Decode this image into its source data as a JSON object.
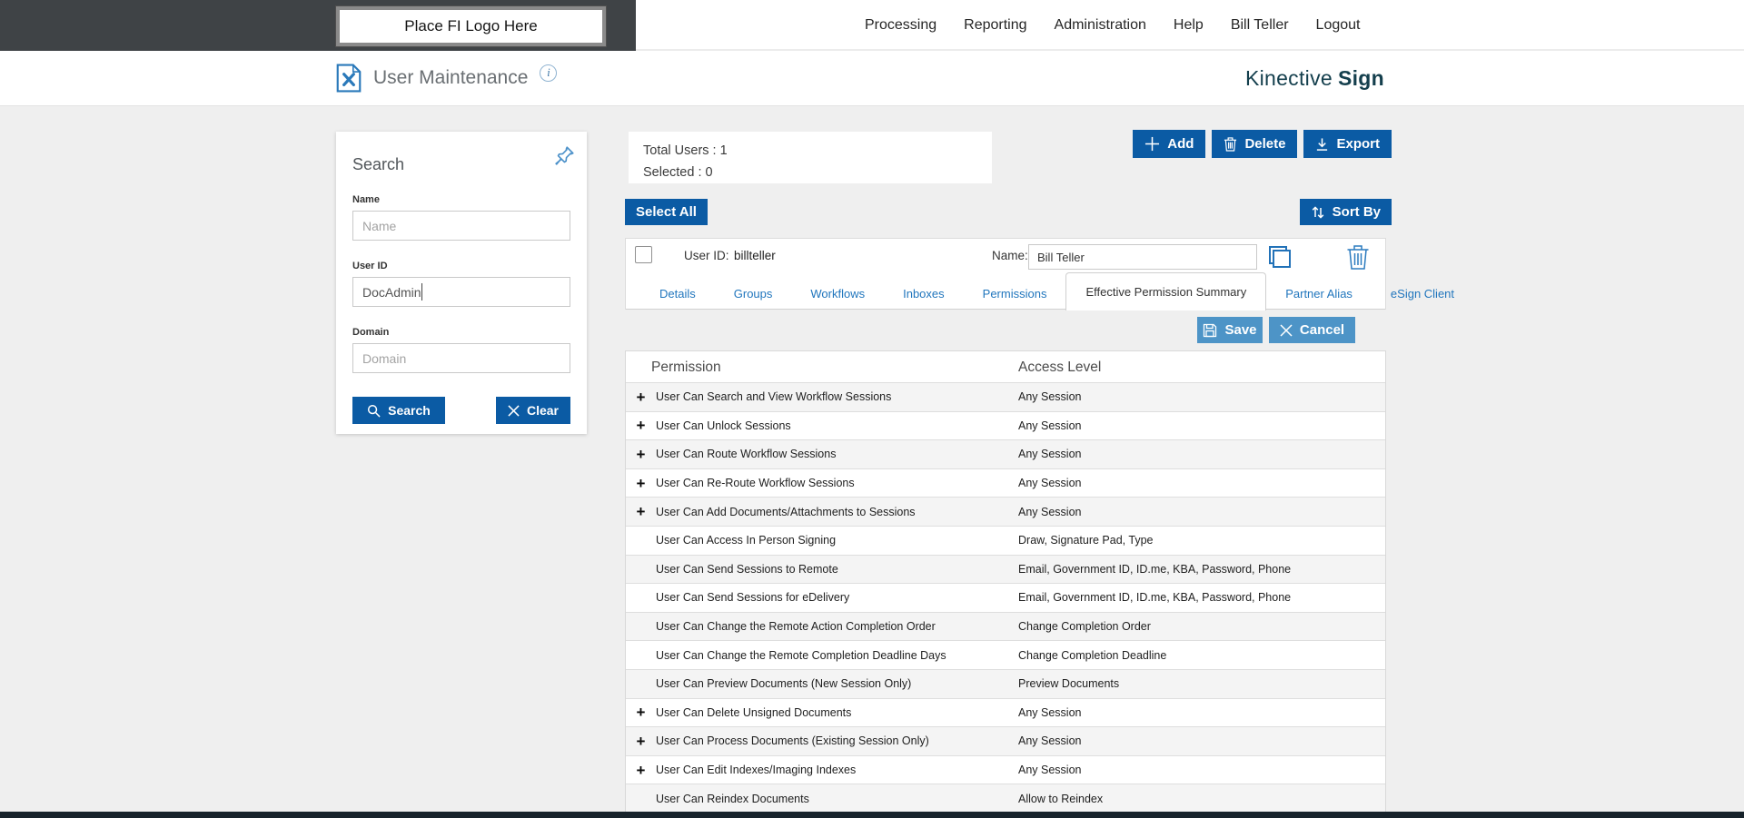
{
  "top_nav": {
    "logo_placeholder": "Place FI Logo Here",
    "links": [
      "Processing",
      "Reporting",
      "Administration",
      "Help",
      "Bill Teller",
      "Logout"
    ]
  },
  "header": {
    "title": "User Maintenance",
    "brand_name": "Kinective",
    "brand_product": "Sign"
  },
  "search_panel": {
    "title": "Search",
    "fields": [
      {
        "label": "Name",
        "placeholder": "Name",
        "value": ""
      },
      {
        "label": "User ID",
        "placeholder": "",
        "value": "DocAdmin"
      },
      {
        "label": "Domain",
        "placeholder": "Domain",
        "value": ""
      }
    ],
    "search_button": "Search",
    "clear_button": "Clear"
  },
  "summary": {
    "total_users_label": "Total Users :",
    "total_users_value": "1",
    "selected_label": "Selected :",
    "selected_value": "0"
  },
  "toolbar": {
    "add_label": "Add",
    "delete_label": "Delete",
    "export_label": "Export",
    "select_all_label": "Select All",
    "sort_by_label": "Sort By"
  },
  "user_card": {
    "user_id_label": "User ID:",
    "user_id_value": "billteller",
    "name_label": "Name:",
    "required_mark": "*",
    "name_value": "Bill Teller",
    "tabs": [
      {
        "label": "Details",
        "active": false
      },
      {
        "label": "Groups",
        "active": false
      },
      {
        "label": "Workflows",
        "active": false
      },
      {
        "label": "Inboxes",
        "active": false
      },
      {
        "label": "Permissions",
        "active": false
      },
      {
        "label": "Effective Permission Summary",
        "active": true
      },
      {
        "label": "Partner Alias",
        "active": false
      },
      {
        "label": "eSign Client",
        "active": false
      }
    ],
    "save_label": "Save",
    "cancel_label": "Cancel"
  },
  "permissions_table": {
    "columns": [
      "Permission",
      "Access Level"
    ],
    "rows": [
      {
        "expandable": true,
        "permission": "User Can Search and View Workflow Sessions",
        "access_level": "Any Session"
      },
      {
        "expandable": true,
        "permission": "User Can Unlock Sessions",
        "access_level": "Any Session"
      },
      {
        "expandable": true,
        "permission": "User Can Route Workflow Sessions",
        "access_level": "Any Session"
      },
      {
        "expandable": true,
        "permission": "User Can Re-Route Workflow Sessions",
        "access_level": "Any Session"
      },
      {
        "expandable": true,
        "permission": "User Can Add Documents/Attachments to Sessions",
        "access_level": "Any Session"
      },
      {
        "expandable": false,
        "permission": "User Can Access In Person Signing",
        "access_level": "Draw, Signature Pad, Type"
      },
      {
        "expandable": false,
        "permission": "User Can Send Sessions to Remote",
        "access_level": "Email, Government ID, ID.me, KBA, Password, Phone"
      },
      {
        "expandable": false,
        "permission": "User Can Send Sessions for eDelivery",
        "access_level": "Email, Government ID, ID.me, KBA, Password, Phone"
      },
      {
        "expandable": false,
        "permission": "User Can Change the Remote Action Completion Order",
        "access_level": "Change Completion Order"
      },
      {
        "expandable": false,
        "permission": "User Can Change the Remote Completion Deadline Days",
        "access_level": "Change Completion Deadline"
      },
      {
        "expandable": false,
        "permission": "User Can Preview Documents (New Session Only)",
        "access_level": "Preview Documents"
      },
      {
        "expandable": true,
        "permission": "User Can Delete Unsigned Documents",
        "access_level": "Any Session"
      },
      {
        "expandable": true,
        "permission": "User Can Process Documents (Existing Session Only)",
        "access_level": "Any Session"
      },
      {
        "expandable": true,
        "permission": "User Can Edit Indexes/Imaging Indexes",
        "access_level": "Any Session"
      },
      {
        "expandable": false,
        "permission": "User Can Reindex Documents",
        "access_level": "Allow to Reindex"
      }
    ]
  },
  "colors": {
    "primary_button": "#0b5ba4",
    "secondary_button": "#4d94c7",
    "link_blue": "#2176bd",
    "brand_teal": "#143f4d",
    "topbar_dark": "#3f4346",
    "footer_dark": "#17232b"
  }
}
